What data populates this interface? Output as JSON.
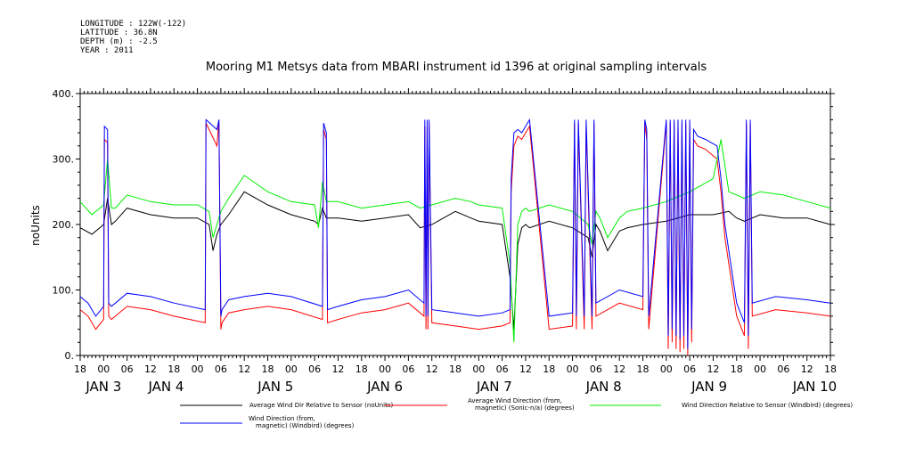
{
  "header": {
    "longitude": "LONGITUDE : 122W(-122)",
    "latitude": "LATITUDE : 36.8N",
    "depth": "DEPTH (m) : -2.5",
    "year": "YEAR : 2011"
  },
  "chart_data": {
    "type": "line",
    "title": "Mooring M1 Metsys data from MBARI instrument id 1396 at original sampling intervals",
    "ylabel": "noUnits",
    "xlabel": "",
    "ylim": [
      0,
      400
    ],
    "y_ticks": [
      0,
      100,
      200,
      300,
      400
    ],
    "y_tick_labels": [
      "0.",
      "100.",
      "200.",
      "300.",
      "400."
    ],
    "x_unit": "hours since JAN 2 18:00 (2011)",
    "xlim": [
      0,
      192
    ],
    "x_tick_hours": [
      0,
      6,
      12,
      18,
      24,
      30,
      36,
      42,
      48,
      54,
      60,
      66,
      72,
      78,
      84,
      90,
      96,
      102,
      108,
      114,
      120,
      126,
      132,
      138,
      144,
      150,
      156,
      162,
      168,
      174,
      180,
      186,
      192
    ],
    "x_tick_labels": [
      "18",
      "00",
      "06",
      "12",
      "18",
      "00",
      "06",
      "12",
      "18",
      "00",
      "06",
      "12",
      "18",
      "00",
      "06",
      "12",
      "18",
      "00",
      "06",
      "12",
      "18",
      "00",
      "06",
      "12",
      "18",
      "00",
      "06",
      "12",
      "18",
      "00",
      "06",
      "12",
      "18"
    ],
    "day_labels": [
      {
        "text": "JAN  3",
        "hour": 6
      },
      {
        "text": "JAN  4",
        "hour": 22
      },
      {
        "text": "JAN  5",
        "hour": 50
      },
      {
        "text": "JAN  6",
        "hour": 78
      },
      {
        "text": "JAN  7",
        "hour": 106
      },
      {
        "text": "JAN  8",
        "hour": 134
      },
      {
        "text": "JAN  9",
        "hour": 161
      },
      {
        "text": "JAN 10",
        "hour": 188
      }
    ],
    "series": [
      {
        "name": "Average Wind Dir Relative to Sensor (noUnits)",
        "color": "#000000",
        "x": [
          0,
          3,
          6,
          7,
          8,
          9,
          12,
          18,
          24,
          30,
          33,
          34,
          35,
          36,
          38,
          42,
          48,
          54,
          60,
          61,
          62,
          63,
          66,
          72,
          78,
          84,
          87,
          90,
          96,
          100,
          102,
          108,
          110,
          111,
          112,
          113,
          114,
          115,
          120,
          126,
          130,
          131,
          132,
          133,
          135,
          138,
          140,
          144,
          150,
          156,
          162,
          166,
          168,
          170,
          174,
          180,
          186,
          192
        ],
        "y": [
          195,
          185,
          200,
          240,
          200,
          205,
          225,
          215,
          210,
          210,
          200,
          160,
          185,
          200,
          215,
          250,
          230,
          215,
          205,
          200,
          225,
          210,
          210,
          205,
          210,
          215,
          195,
          200,
          220,
          210,
          205,
          200,
          120,
          40,
          170,
          195,
          200,
          195,
          205,
          195,
          180,
          150,
          200,
          190,
          160,
          190,
          195,
          200,
          205,
          215,
          215,
          220,
          210,
          205,
          215,
          210,
          210,
          200
        ]
      },
      {
        "name": "Average Wind Direction (from, magnetic) (Sonic-n/a) (degrees)",
        "color": "#ff0000",
        "x": [
          0,
          2,
          4,
          6,
          6.2,
          7,
          7.3,
          8,
          12,
          18,
          24,
          32,
          32.2,
          35,
          35.5,
          36,
          36.3,
          38,
          42,
          48,
          54,
          62,
          62.3,
          63,
          63.3,
          66,
          72,
          78,
          84,
          88,
          88.2,
          88.5,
          88.8,
          89,
          89.3,
          90,
          96,
          102,
          108,
          110,
          110.3,
          111,
          112,
          113,
          114,
          115,
          120,
          126,
          126.5,
          127,
          127.5,
          129,
          129.5,
          131,
          131.5,
          132,
          138,
          144,
          144.5,
          145,
          145.5,
          150,
          150.5,
          151,
          151.5,
          152,
          152.5,
          153,
          153.5,
          154,
          154.5,
          155,
          155.5,
          156,
          156.5,
          157,
          158,
          160,
          163,
          164,
          165,
          168,
          170,
          170.5,
          171,
          171.5,
          172,
          178,
          186,
          192
        ],
        "y": [
          70,
          60,
          40,
          55,
          330,
          325,
          60,
          55,
          75,
          70,
          60,
          50,
          355,
          320,
          360,
          40,
          50,
          65,
          70,
          75,
          70,
          55,
          345,
          330,
          50,
          55,
          65,
          70,
          80,
          60,
          350,
          40,
          350,
          40,
          355,
          50,
          45,
          40,
          45,
          50,
          250,
          320,
          335,
          330,
          340,
          350,
          40,
          45,
          355,
          40,
          355,
          40,
          350,
          40,
          355,
          60,
          80,
          70,
          355,
          330,
          40,
          355,
          10,
          355,
          20,
          355,
          10,
          350,
          5,
          355,
          10,
          355,
          0,
          350,
          20,
          330,
          320,
          315,
          300,
          250,
          180,
          60,
          30,
          355,
          10,
          355,
          60,
          70,
          65,
          60
        ]
      },
      {
        "name": "Wind Direction Relative to Sensor (Windbird) (degrees)",
        "color": "#00ee00",
        "x": [
          0,
          3,
          6,
          7,
          8,
          9,
          12,
          18,
          24,
          30,
          33,
          34,
          35,
          36,
          38,
          42,
          48,
          54,
          60,
          61,
          62,
          63,
          66,
          72,
          78,
          84,
          87,
          90,
          96,
          100,
          102,
          108,
          110,
          111,
          112,
          113,
          114,
          115,
          120,
          126,
          130,
          131,
          132,
          133,
          135,
          138,
          140,
          144,
          150,
          156,
          162,
          164,
          166,
          168,
          170,
          174,
          180,
          186,
          192
        ],
        "y": [
          235,
          215,
          230,
          300,
          225,
          225,
          245,
          235,
          230,
          230,
          220,
          180,
          200,
          220,
          240,
          275,
          250,
          235,
          230,
          195,
          265,
          235,
          235,
          225,
          230,
          235,
          225,
          230,
          240,
          235,
          230,
          225,
          140,
          20,
          200,
          220,
          225,
          220,
          230,
          220,
          200,
          170,
          220,
          210,
          180,
          210,
          220,
          225,
          235,
          250,
          270,
          330,
          250,
          245,
          240,
          250,
          245,
          235,
          225
        ]
      },
      {
        "name": "Wind Direction (from, magnetic) (Windbird) (degrees)",
        "color": "#0000ff",
        "x": [
          0,
          2,
          4,
          6,
          6.2,
          7,
          7.3,
          8,
          12,
          18,
          24,
          32,
          32.2,
          35,
          35.5,
          36,
          36.3,
          38,
          42,
          48,
          54,
          62,
          62.3,
          63,
          63.3,
          66,
          72,
          78,
          84,
          88,
          88.2,
          88.5,
          88.8,
          89,
          89.3,
          90,
          96,
          102,
          108,
          110,
          110.3,
          111,
          112,
          113,
          114,
          115,
          120,
          126,
          126.5,
          127,
          127.5,
          129,
          129.5,
          131,
          131.5,
          132,
          138,
          144,
          144.5,
          145,
          145.5,
          150,
          150.5,
          151,
          151.5,
          152,
          152.5,
          153,
          153.5,
          154,
          154.5,
          155,
          155.5,
          156,
          156.5,
          157,
          158,
          160,
          163,
          164,
          165,
          168,
          170,
          170.5,
          171,
          171.5,
          172,
          178,
          186,
          192
        ],
        "y": [
          90,
          80,
          60,
          75,
          350,
          345,
          80,
          75,
          95,
          90,
          80,
          70,
          360,
          345,
          360,
          60,
          70,
          85,
          90,
          95,
          90,
          75,
          355,
          340,
          70,
          75,
          85,
          90,
          100,
          80,
          360,
          60,
          360,
          60,
          360,
          70,
          65,
          60,
          65,
          70,
          270,
          340,
          345,
          340,
          350,
          360,
          60,
          65,
          360,
          60,
          360,
          60,
          360,
          60,
          360,
          80,
          100,
          90,
          360,
          345,
          60,
          360,
          30,
          360,
          40,
          360,
          30,
          360,
          25,
          360,
          30,
          360,
          10,
          360,
          40,
          345,
          335,
          330,
          320,
          270,
          200,
          80,
          50,
          360,
          30,
          360,
          80,
          90,
          85,
          80
        ]
      }
    ],
    "legend_placement": "bottom",
    "grid": false
  }
}
